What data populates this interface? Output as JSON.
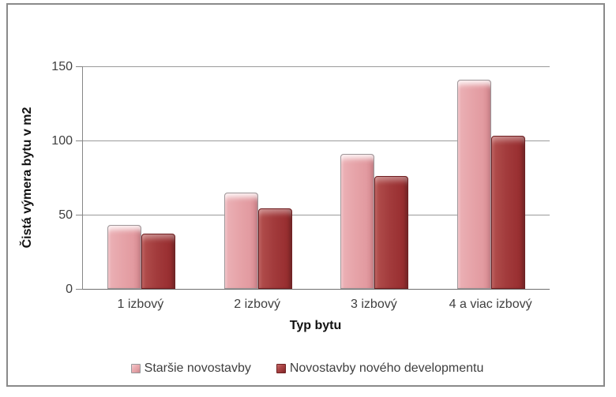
{
  "window": {
    "background_color": "#ffffff",
    "border_color": "#8a8a8a"
  },
  "chart_data": {
    "type": "bar",
    "title": "",
    "categories": [
      "1 izbový",
      "2 izbový",
      "3 izbový",
      "4 a viac izbový"
    ],
    "series": [
      {
        "name": "Staršie novostavby",
        "values": [
          43,
          65,
          91,
          141
        ],
        "color": "#e6a3a8"
      },
      {
        "name": "Novostavby nového developmentu",
        "values": [
          37,
          54,
          76,
          103
        ],
        "color": "#a23b3c"
      }
    ],
    "xlabel": "Typ bytu",
    "ylabel": "Čistá výmera bytu v m2",
    "yticks": [
      0,
      50,
      100,
      150
    ],
    "ytick_labels": [
      "0",
      "50",
      "100",
      "150"
    ],
    "ylim": [
      0,
      150
    ],
    "grid": true,
    "gridline_color": "#9a9a9a",
    "axis_color": "#868686",
    "tick_text_color": "#3f3f3f",
    "legend_position": "bottom"
  }
}
